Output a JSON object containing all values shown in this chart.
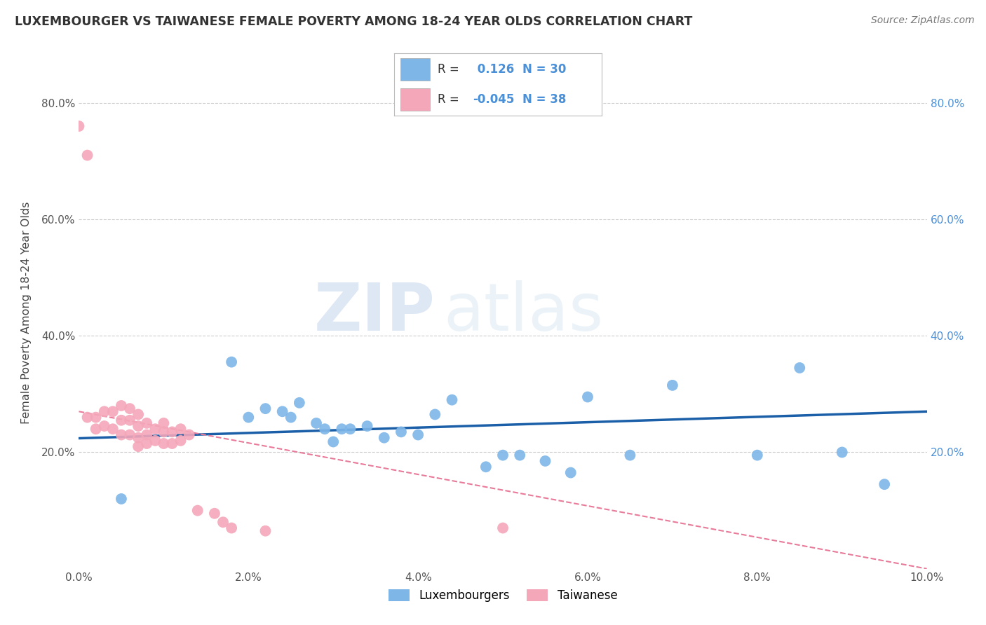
{
  "title": "LUXEMBOURGER VS TAIWANESE FEMALE POVERTY AMONG 18-24 YEAR OLDS CORRELATION CHART",
  "source": "Source: ZipAtlas.com",
  "xlabel": "",
  "ylabel": "Female Poverty Among 18-24 Year Olds",
  "xlim": [
    0.0,
    0.1
  ],
  "ylim": [
    0.0,
    0.88
  ],
  "xticks": [
    0.0,
    0.02,
    0.04,
    0.06,
    0.08,
    0.1
  ],
  "xtick_labels": [
    "0.0%",
    "2.0%",
    "4.0%",
    "6.0%",
    "8.0%",
    "10.0%"
  ],
  "yticks": [
    0.2,
    0.4,
    0.6,
    0.8
  ],
  "ytick_labels": [
    "20.0%",
    "40.0%",
    "60.0%",
    "80.0%"
  ],
  "blue_color": "#7EB6E8",
  "pink_color": "#F4A7B9",
  "blue_line_color": "#1A5FA8",
  "pink_line_color": "#E87A9A",
  "watermark_zip": "ZIP",
  "watermark_atlas": "atlas",
  "legend_R_blue": "0.126",
  "legend_N_blue": "30",
  "legend_R_pink": "-0.045",
  "legend_N_pink": "38",
  "blue_x": [
    0.005,
    0.018,
    0.02,
    0.022,
    0.024,
    0.025,
    0.026,
    0.028,
    0.029,
    0.03,
    0.031,
    0.032,
    0.034,
    0.036,
    0.038,
    0.04,
    0.042,
    0.044,
    0.048,
    0.05,
    0.052,
    0.055,
    0.058,
    0.06,
    0.065,
    0.07,
    0.08,
    0.085,
    0.09,
    0.095
  ],
  "blue_y": [
    0.12,
    0.355,
    0.26,
    0.275,
    0.27,
    0.26,
    0.285,
    0.25,
    0.24,
    0.218,
    0.24,
    0.24,
    0.245,
    0.225,
    0.235,
    0.23,
    0.265,
    0.29,
    0.175,
    0.195,
    0.195,
    0.185,
    0.165,
    0.295,
    0.195,
    0.315,
    0.195,
    0.345,
    0.2,
    0.145
  ],
  "pink_x": [
    0.0,
    0.001,
    0.001,
    0.002,
    0.002,
    0.003,
    0.003,
    0.004,
    0.004,
    0.005,
    0.005,
    0.005,
    0.006,
    0.006,
    0.006,
    0.007,
    0.007,
    0.007,
    0.007,
    0.008,
    0.008,
    0.008,
    0.009,
    0.009,
    0.01,
    0.01,
    0.01,
    0.011,
    0.011,
    0.012,
    0.012,
    0.013,
    0.014,
    0.016,
    0.017,
    0.018,
    0.022,
    0.05
  ],
  "pink_y": [
    0.76,
    0.71,
    0.26,
    0.26,
    0.24,
    0.27,
    0.245,
    0.27,
    0.24,
    0.28,
    0.255,
    0.23,
    0.275,
    0.255,
    0.23,
    0.265,
    0.245,
    0.225,
    0.21,
    0.25,
    0.23,
    0.215,
    0.24,
    0.22,
    0.25,
    0.235,
    0.215,
    0.235,
    0.215,
    0.24,
    0.22,
    0.23,
    0.1,
    0.095,
    0.08,
    0.07,
    0.065,
    0.07
  ],
  "blue_trend_x0": 0.0,
  "blue_trend_x1": 0.1,
  "blue_trend_y0": 0.224,
  "blue_trend_y1": 0.27,
  "pink_trend_x0": 0.0,
  "pink_trend_x1": 0.1,
  "pink_trend_y0": 0.27,
  "pink_trend_y1": 0.0
}
